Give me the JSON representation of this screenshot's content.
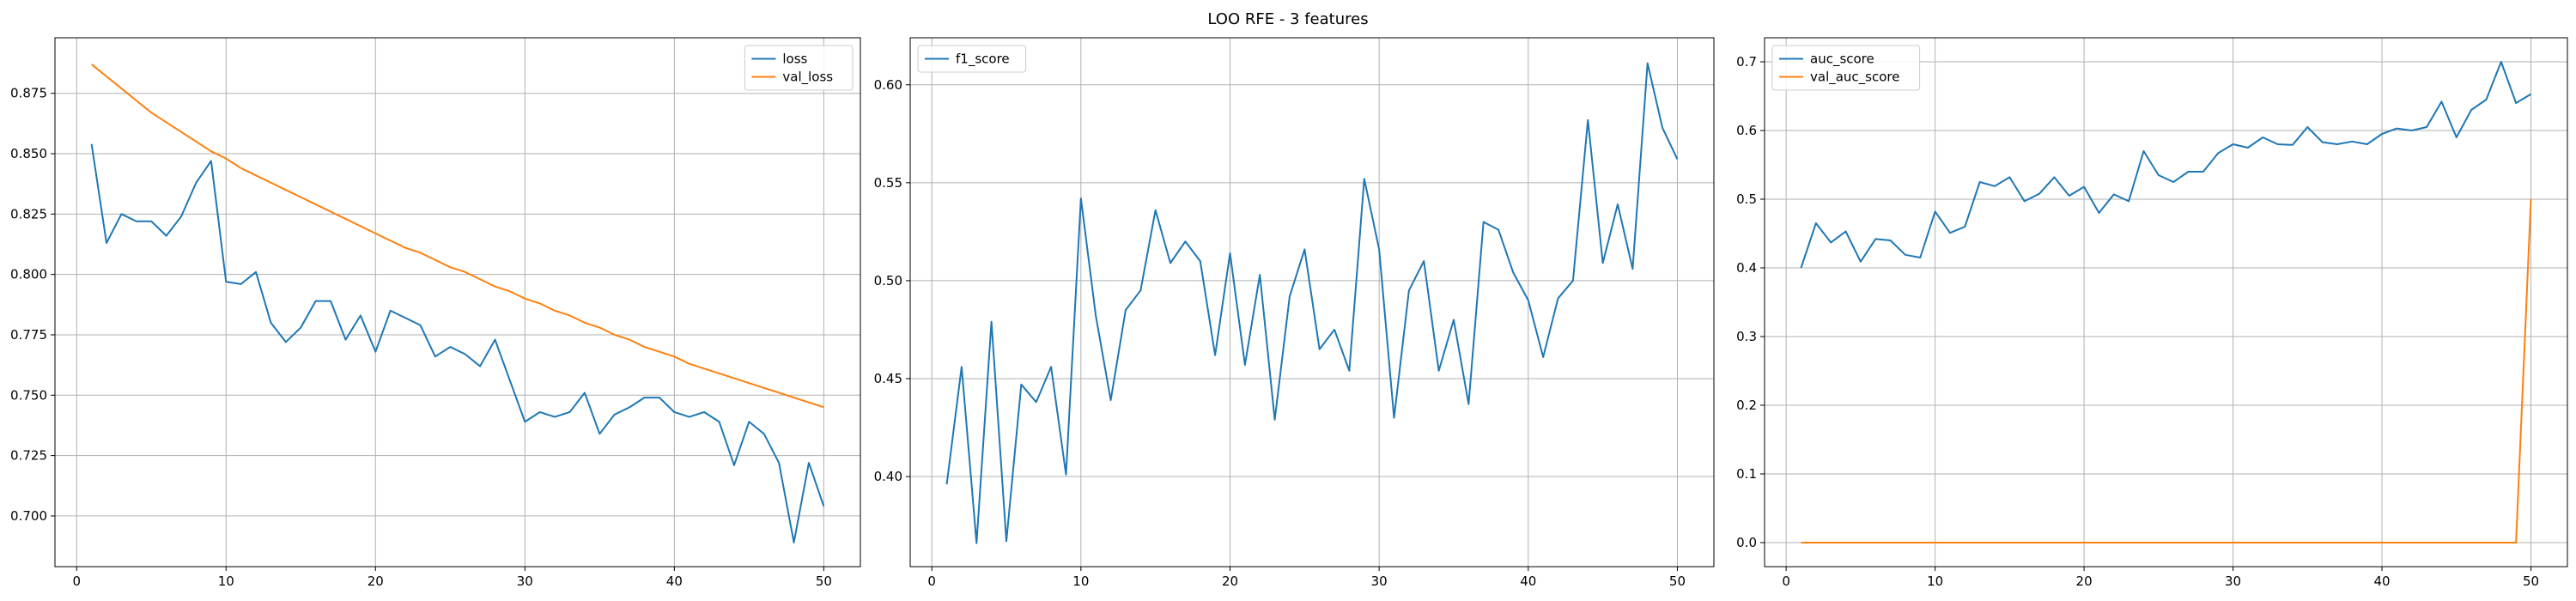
{
  "figure": {
    "suptitle": "LOO RFE - 3 features"
  },
  "chart_data": [
    {
      "type": "line",
      "title": "",
      "xlabel": "",
      "ylabel": "",
      "grid": true,
      "legend_position": "upper right",
      "xlim": [
        -1.45,
        52.45
      ],
      "ylim": [
        0.679,
        0.898
      ],
      "xticks": [
        0,
        10,
        20,
        30,
        40,
        50
      ],
      "yticks": [
        0.7,
        0.725,
        0.75,
        0.775,
        0.8,
        0.825,
        0.85,
        0.875
      ],
      "ytick_labels": [
        "0.700",
        "0.725",
        "0.750",
        "0.775",
        "0.800",
        "0.825",
        "0.850",
        "0.875"
      ],
      "series": [
        {
          "name": "loss",
          "color": "#1f77b4",
          "x": [
            1,
            2,
            3,
            4,
            5,
            6,
            7,
            8,
            9,
            10,
            11,
            12,
            13,
            14,
            15,
            16,
            17,
            18,
            19,
            20,
            21,
            22,
            23,
            24,
            25,
            26,
            27,
            28,
            29,
            30,
            31,
            32,
            33,
            34,
            35,
            36,
            37,
            38,
            39,
            40,
            41,
            42,
            43,
            44,
            45,
            46,
            47,
            48,
            49,
            50
          ],
          "values": [
            0.854,
            0.813,
            0.825,
            0.822,
            0.822,
            0.816,
            0.824,
            0.838,
            0.847,
            0.797,
            0.796,
            0.801,
            0.78,
            0.772,
            0.778,
            0.789,
            0.789,
            0.773,
            0.783,
            0.768,
            0.785,
            0.782,
            0.779,
            0.766,
            0.77,
            0.767,
            0.762,
            0.773,
            0.756,
            0.739,
            0.743,
            0.741,
            0.743,
            0.751,
            0.734,
            0.742,
            0.745,
            0.749,
            0.749,
            0.743,
            0.741,
            0.743,
            0.739,
            0.721,
            0.739,
            0.734,
            0.722,
            0.689,
            0.722,
            0.704
          ]
        },
        {
          "name": "val_loss",
          "color": "#ff7f0e",
          "x": [
            1,
            2,
            3,
            4,
            5,
            6,
            7,
            8,
            9,
            10,
            11,
            12,
            13,
            14,
            15,
            16,
            17,
            18,
            19,
            20,
            21,
            22,
            23,
            24,
            25,
            26,
            27,
            28,
            29,
            30,
            31,
            32,
            33,
            34,
            35,
            36,
            37,
            38,
            39,
            40,
            41,
            42,
            43,
            44,
            45,
            46,
            47,
            48,
            49,
            50
          ],
          "values": [
            0.887,
            0.882,
            0.877,
            0.872,
            0.867,
            0.863,
            0.859,
            0.855,
            0.851,
            0.848,
            0.844,
            0.841,
            0.838,
            0.835,
            0.832,
            0.829,
            0.826,
            0.823,
            0.82,
            0.817,
            0.814,
            0.811,
            0.809,
            0.806,
            0.803,
            0.801,
            0.798,
            0.795,
            0.793,
            0.79,
            0.788,
            0.785,
            0.783,
            0.78,
            0.778,
            0.775,
            0.773,
            0.77,
            0.768,
            0.766,
            0.763,
            0.761,
            0.759,
            0.757,
            0.755,
            0.753,
            0.751,
            0.749,
            0.747,
            0.745
          ]
        }
      ]
    },
    {
      "type": "line",
      "title": "",
      "xlabel": "",
      "ylabel": "",
      "grid": true,
      "legend_position": "upper left",
      "xlim": [
        -1.45,
        52.45
      ],
      "ylim": [
        0.354,
        0.624
      ],
      "xticks": [
        0,
        10,
        20,
        30,
        40,
        50
      ],
      "yticks": [
        0.4,
        0.45,
        0.5,
        0.55,
        0.6
      ],
      "ytick_labels": [
        "0.40",
        "0.45",
        "0.50",
        "0.55",
        "0.60"
      ],
      "series": [
        {
          "name": "f1_score",
          "color": "#1f77b4",
          "x": [
            1,
            2,
            3,
            4,
            5,
            6,
            7,
            8,
            9,
            10,
            11,
            12,
            13,
            14,
            15,
            16,
            17,
            18,
            19,
            20,
            21,
            22,
            23,
            24,
            25,
            26,
            27,
            28,
            29,
            30,
            31,
            32,
            33,
            34,
            35,
            36,
            37,
            38,
            39,
            40,
            41,
            42,
            43,
            44,
            45,
            46,
            47,
            48,
            49,
            50
          ],
          "values": [
            0.396,
            0.456,
            0.366,
            0.479,
            0.367,
            0.447,
            0.438,
            0.456,
            0.401,
            0.542,
            0.482,
            0.439,
            0.485,
            0.495,
            0.536,
            0.509,
            0.52,
            0.51,
            0.462,
            0.514,
            0.457,
            0.503,
            0.429,
            0.492,
            0.516,
            0.465,
            0.475,
            0.454,
            0.552,
            0.516,
            0.43,
            0.495,
            0.51,
            0.454,
            0.48,
            0.437,
            0.53,
            0.526,
            0.504,
            0.49,
            0.461,
            0.491,
            0.5,
            0.582,
            0.509,
            0.539,
            0.506,
            0.611,
            0.578,
            0.562
          ]
        }
      ]
    },
    {
      "type": "line",
      "title": "",
      "xlabel": "",
      "ylabel": "",
      "grid": true,
      "legend_position": "upper left",
      "xlim": [
        -1.45,
        52.45
      ],
      "ylim": [
        -0.035,
        0.735
      ],
      "xticks": [
        0,
        10,
        20,
        30,
        40,
        50
      ],
      "yticks": [
        0.0,
        0.1,
        0.2,
        0.3,
        0.4,
        0.5,
        0.6,
        0.7
      ],
      "ytick_labels": [
        "0.0",
        "0.1",
        "0.2",
        "0.3",
        "0.4",
        "0.5",
        "0.6",
        "0.7"
      ],
      "series": [
        {
          "name": "auc_score",
          "color": "#1f77b4",
          "x": [
            1,
            2,
            3,
            4,
            5,
            6,
            7,
            8,
            9,
            10,
            11,
            12,
            13,
            14,
            15,
            16,
            17,
            18,
            19,
            20,
            21,
            22,
            23,
            24,
            25,
            26,
            27,
            28,
            29,
            30,
            31,
            32,
            33,
            34,
            35,
            36,
            37,
            38,
            39,
            40,
            41,
            42,
            43,
            44,
            45,
            46,
            47,
            48,
            49,
            50
          ],
          "values": [
            0.4,
            0.465,
            0.437,
            0.453,
            0.409,
            0.442,
            0.44,
            0.419,
            0.415,
            0.482,
            0.451,
            0.46,
            0.525,
            0.519,
            0.532,
            0.497,
            0.508,
            0.532,
            0.505,
            0.518,
            0.48,
            0.507,
            0.497,
            0.57,
            0.535,
            0.525,
            0.54,
            0.54,
            0.567,
            0.58,
            0.575,
            0.59,
            0.58,
            0.579,
            0.605,
            0.583,
            0.58,
            0.584,
            0.58,
            0.595,
            0.603,
            0.6,
            0.605,
            0.642,
            0.59,
            0.63,
            0.645,
            0.7,
            0.64,
            0.653
          ]
        },
        {
          "name": "val_auc_score",
          "color": "#ff7f0e",
          "x": [
            1,
            2,
            3,
            4,
            5,
            6,
            7,
            8,
            9,
            10,
            11,
            12,
            13,
            14,
            15,
            16,
            17,
            18,
            19,
            20,
            21,
            22,
            23,
            24,
            25,
            26,
            27,
            28,
            29,
            30,
            31,
            32,
            33,
            34,
            35,
            36,
            37,
            38,
            39,
            40,
            41,
            42,
            43,
            44,
            45,
            46,
            47,
            48,
            49,
            50
          ],
          "values": [
            0,
            0,
            0,
            0,
            0,
            0,
            0,
            0,
            0,
            0,
            0,
            0,
            0,
            0,
            0,
            0,
            0,
            0,
            0,
            0,
            0,
            0,
            0,
            0,
            0,
            0,
            0,
            0,
            0,
            0,
            0,
            0,
            0,
            0,
            0,
            0,
            0,
            0,
            0,
            0,
            0,
            0,
            0,
            0,
            0,
            0,
            0,
            0,
            0,
            0.5
          ]
        }
      ]
    }
  ]
}
